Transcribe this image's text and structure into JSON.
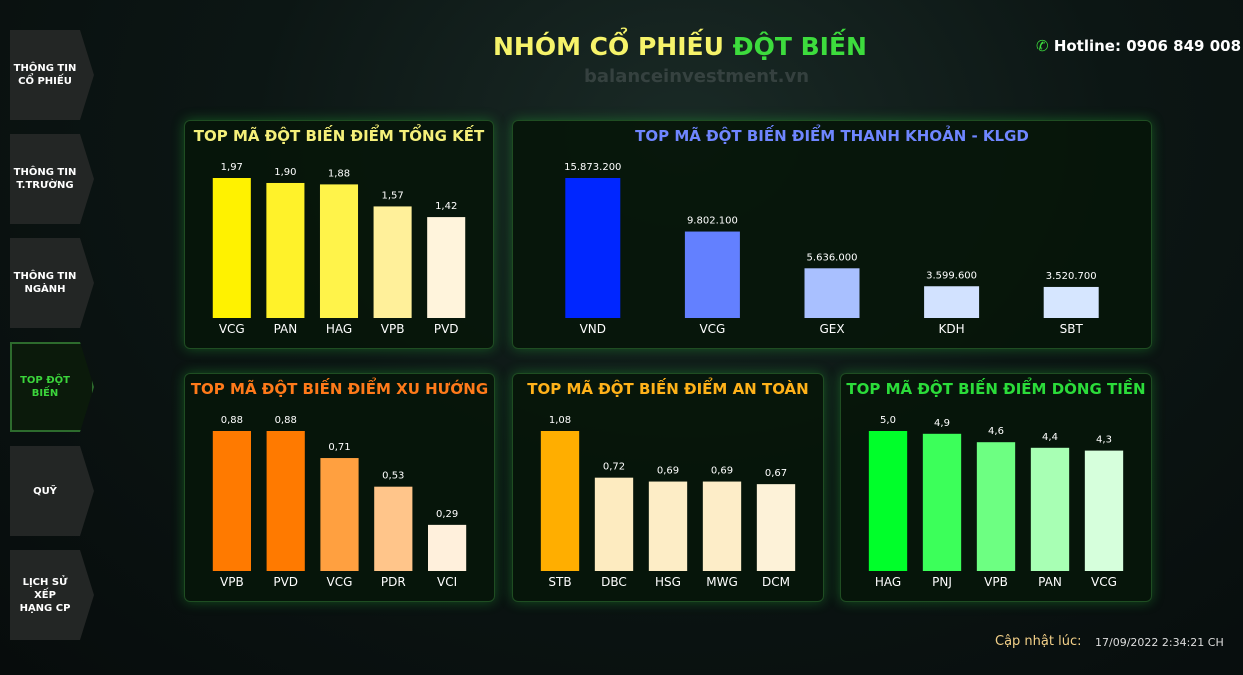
{
  "sidebar": {
    "items": [
      {
        "lines": [
          "THÔNG TIN",
          "CỔ PHIẾU"
        ]
      },
      {
        "lines": [
          "THÔNG TIN",
          "T.TRƯỜNG"
        ]
      },
      {
        "lines": [
          "THÔNG TIN",
          "NGÀNH"
        ]
      },
      {
        "lines": [
          "TOP ĐỘT",
          "BIẾN"
        ],
        "active": true
      },
      {
        "lines": [
          "QUỸ"
        ]
      },
      {
        "lines": [
          "LỊCH SỬ XẾP",
          "HẠNG CP"
        ]
      }
    ]
  },
  "header": {
    "title_part1": "NHÓM CỔ PHIẾU",
    "title_part2": "ĐỘT BIẾN",
    "watermark": "balanceinvestment.vn",
    "hotline": "Hotline: 0906 849 008"
  },
  "footer": {
    "update_label": "Cập nhật lúc:",
    "update_time": "17/09/2022 2:34:21 CH"
  },
  "chart_data": [
    {
      "type": "bar",
      "title": "TOP MÃ ĐỘT BIẾN ĐIỂM TỔNG KẾT",
      "title_color": "#f5f07a",
      "categories": [
        "VCG",
        "PAN",
        "HAG",
        "VPB",
        "PVD"
      ],
      "values": [
        1.97,
        1.9,
        1.88,
        1.57,
        1.42
      ],
      "value_labels": [
        "1,97",
        "1,90",
        "1,88",
        "1,57",
        "1,42"
      ],
      "colors": [
        "#fff200",
        "#fff22a",
        "#fff34a",
        "#fff09a",
        "#fff4dc"
      ]
    },
    {
      "type": "bar",
      "title": "TOP MÃ ĐỘT BIẾN ĐIỂM THANH KHOẢN - KLGD",
      "title_color": "#6f86ff",
      "categories": [
        "VND",
        "VCG",
        "GEX",
        "KDH",
        "SBT"
      ],
      "values": [
        15873200,
        9802100,
        5636000,
        3599600,
        3520700
      ],
      "value_labels": [
        "15.873.200",
        "9.802.100",
        "5.636.000",
        "3.599.600",
        "3.520.700"
      ],
      "colors": [
        "#0026ff",
        "#6380ff",
        "#a9c0ff",
        "#d2e2ff",
        "#d6e6ff"
      ]
    },
    {
      "type": "bar",
      "title": "TOP MÃ ĐỘT BIẾN ĐIỂM XU HƯỚNG",
      "title_color": "#ff7a1a",
      "categories": [
        "VPB",
        "PVD",
        "VCG",
        "PDR",
        "VCI"
      ],
      "values": [
        0.88,
        0.88,
        0.71,
        0.53,
        0.29
      ],
      "value_labels": [
        "0,88",
        "0,88",
        "0,71",
        "0,53",
        "0,29"
      ],
      "colors": [
        "#ff7a00",
        "#ff7a00",
        "#ffa040",
        "#ffc58a",
        "#fff0dc"
      ]
    },
    {
      "type": "bar",
      "title": "TOP MÃ ĐỘT BIẾN ĐIỂM AN TOÀN",
      "title_color": "#ffb21a",
      "categories": [
        "STB",
        "DBC",
        "HSG",
        "MWG",
        "DCM"
      ],
      "values": [
        1.08,
        0.72,
        0.69,
        0.69,
        0.67
      ],
      "value_labels": [
        "1,08",
        "0,72",
        "0,69",
        "0,69",
        "0,67"
      ],
      "colors": [
        "#ffae00",
        "#fdebc0",
        "#fdedc6",
        "#fdedc8",
        "#fdf2d8"
      ]
    },
    {
      "type": "bar",
      "title": "TOP MÃ ĐỘT BIẾN ĐIỂM DÒNG TIỀN",
      "title_color": "#2bdc3a",
      "categories": [
        "HAG",
        "PNJ",
        "VPB",
        "PAN",
        "VCG"
      ],
      "values": [
        5.0,
        4.9,
        4.6,
        4.4,
        4.3
      ],
      "value_labels": [
        "5,0",
        "4,9",
        "4,6",
        "4,4",
        "4,3"
      ],
      "colors": [
        "#00ff2a",
        "#3cff5a",
        "#6dff82",
        "#a8ffb4",
        "#d6ffdc"
      ]
    }
  ]
}
